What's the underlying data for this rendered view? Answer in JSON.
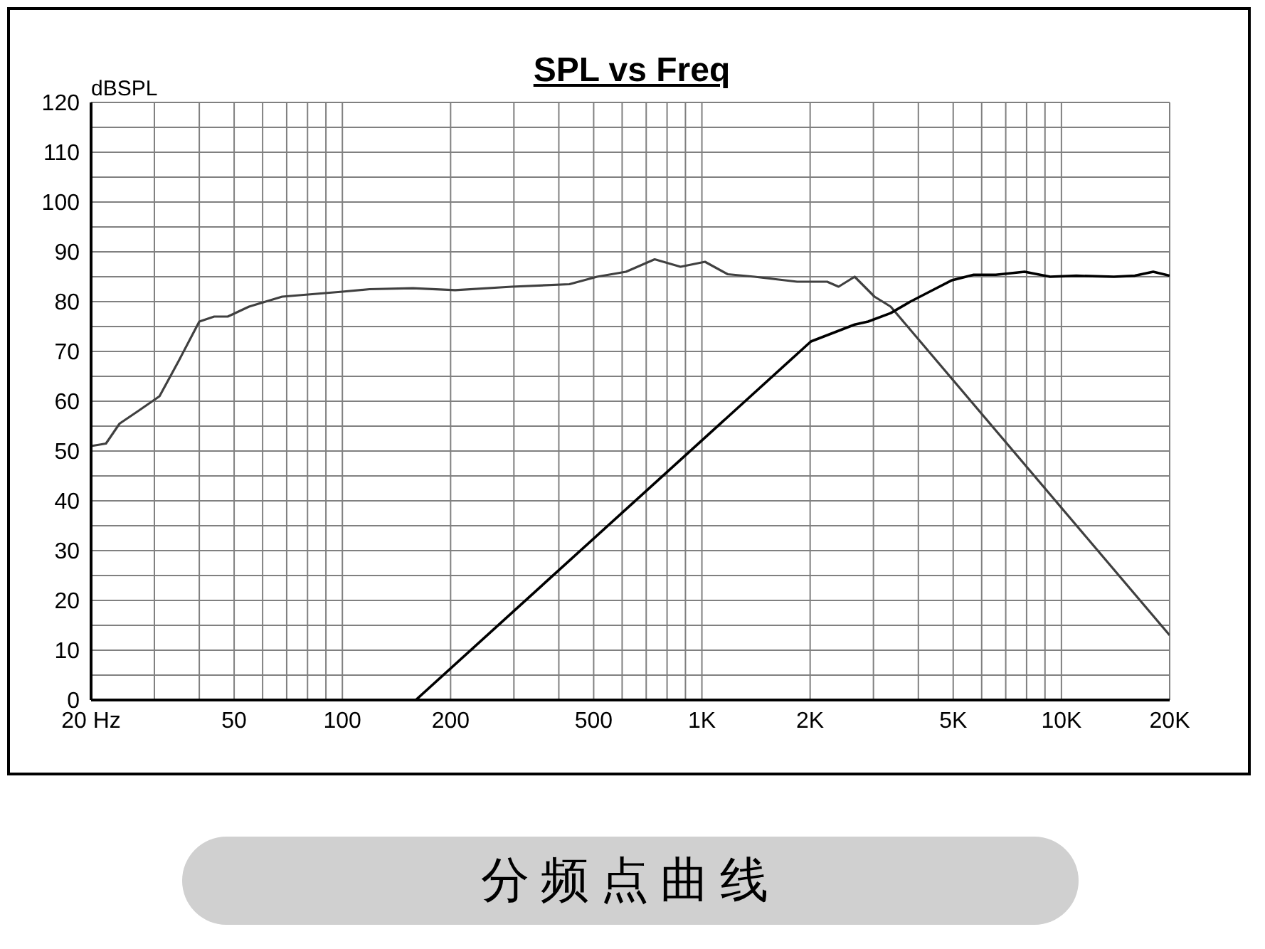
{
  "chart_data": {
    "type": "line",
    "title": "SPL vs Freq",
    "ylabel": "dBSPL",
    "log": "x",
    "grid": true,
    "legend": false,
    "marker": "none",
    "line_style": "solid",
    "xlim": [
      20,
      20000
    ],
    "xticks": [
      {
        "value": 20,
        "label": "20  Hz"
      },
      {
        "value": 30,
        "label": null
      },
      {
        "value": 40,
        "label": null
      },
      {
        "value": 50,
        "label": "50"
      },
      {
        "value": 60,
        "label": null
      },
      {
        "value": 70,
        "label": null
      },
      {
        "value": 80,
        "label": null
      },
      {
        "value": 90,
        "label": null
      },
      {
        "value": 100,
        "label": "100"
      },
      {
        "value": 200,
        "label": "200"
      },
      {
        "value": 300,
        "label": null
      },
      {
        "value": 400,
        "label": null
      },
      {
        "value": 500,
        "label": "500"
      },
      {
        "value": 600,
        "label": null
      },
      {
        "value": 700,
        "label": null
      },
      {
        "value": 800,
        "label": null
      },
      {
        "value": 900,
        "label": null
      },
      {
        "value": 1000,
        "label": "1K"
      },
      {
        "value": 2000,
        "label": "2K"
      },
      {
        "value": 3000,
        "label": null
      },
      {
        "value": 4000,
        "label": null
      },
      {
        "value": 5000,
        "label": "5K"
      },
      {
        "value": 6000,
        "label": null
      },
      {
        "value": 7000,
        "label": null
      },
      {
        "value": 8000,
        "label": null
      },
      {
        "value": 9000,
        "label": null
      },
      {
        "value": 10000,
        "label": "10K"
      },
      {
        "value": 20000,
        "label": "20K"
      }
    ],
    "ylim": [
      0,
      120
    ],
    "yticks": [
      0,
      {
        "value": 5,
        "label": null
      },
      10,
      {
        "value": 15,
        "label": null
      },
      20,
      {
        "value": 25,
        "label": null
      },
      30,
      {
        "value": 35,
        "label": null
      },
      40,
      {
        "value": 45,
        "label": null
      },
      50,
      {
        "value": 55,
        "label": null
      },
      60,
      {
        "value": 65,
        "label": null
      },
      70,
      {
        "value": 75,
        "label": null
      },
      80,
      {
        "value": 85,
        "label": null
      },
      90,
      {
        "value": 95,
        "label": null
      },
      100,
      {
        "value": 105,
        "label": null
      },
      110,
      {
        "value": 115,
        "label": null
      },
      120
    ],
    "series": [
      {
        "color": "#404040",
        "x": [
          20,
          22,
          24,
          27,
          31,
          35,
          40,
          44,
          48,
          55,
          68,
          100,
          119,
          157,
          206,
          296,
          428,
          511,
          615,
          739,
          872,
          1020,
          1180,
          1400,
          1840,
          2230,
          2400,
          2660,
          3020,
          3350,
          20000
        ],
        "values": [
          51,
          51.5,
          55.5,
          58,
          61,
          68,
          76,
          77,
          77,
          79,
          81,
          82,
          82.5,
          82.7,
          82.3,
          83,
          83.5,
          85,
          86,
          88.5,
          87,
          88,
          85.5,
          85,
          84,
          84,
          83,
          85,
          81,
          79,
          13
        ]
      },
      {
        "color": "#000000",
        "x": [
          160,
          2010,
          2660,
          2900,
          3350,
          3800,
          4300,
          4960,
          5700,
          6570,
          7900,
          9300,
          11000,
          14000,
          16000,
          18000,
          20000
        ],
        "values": [
          0,
          72,
          75.4,
          76,
          77.7,
          80,
          82,
          84.3,
          85.4,
          85.4,
          86,
          85,
          85.2,
          85,
          85.2,
          86,
          85.2
        ]
      }
    ],
    "annotations": [
      "分频点曲线"
    ]
  }
}
